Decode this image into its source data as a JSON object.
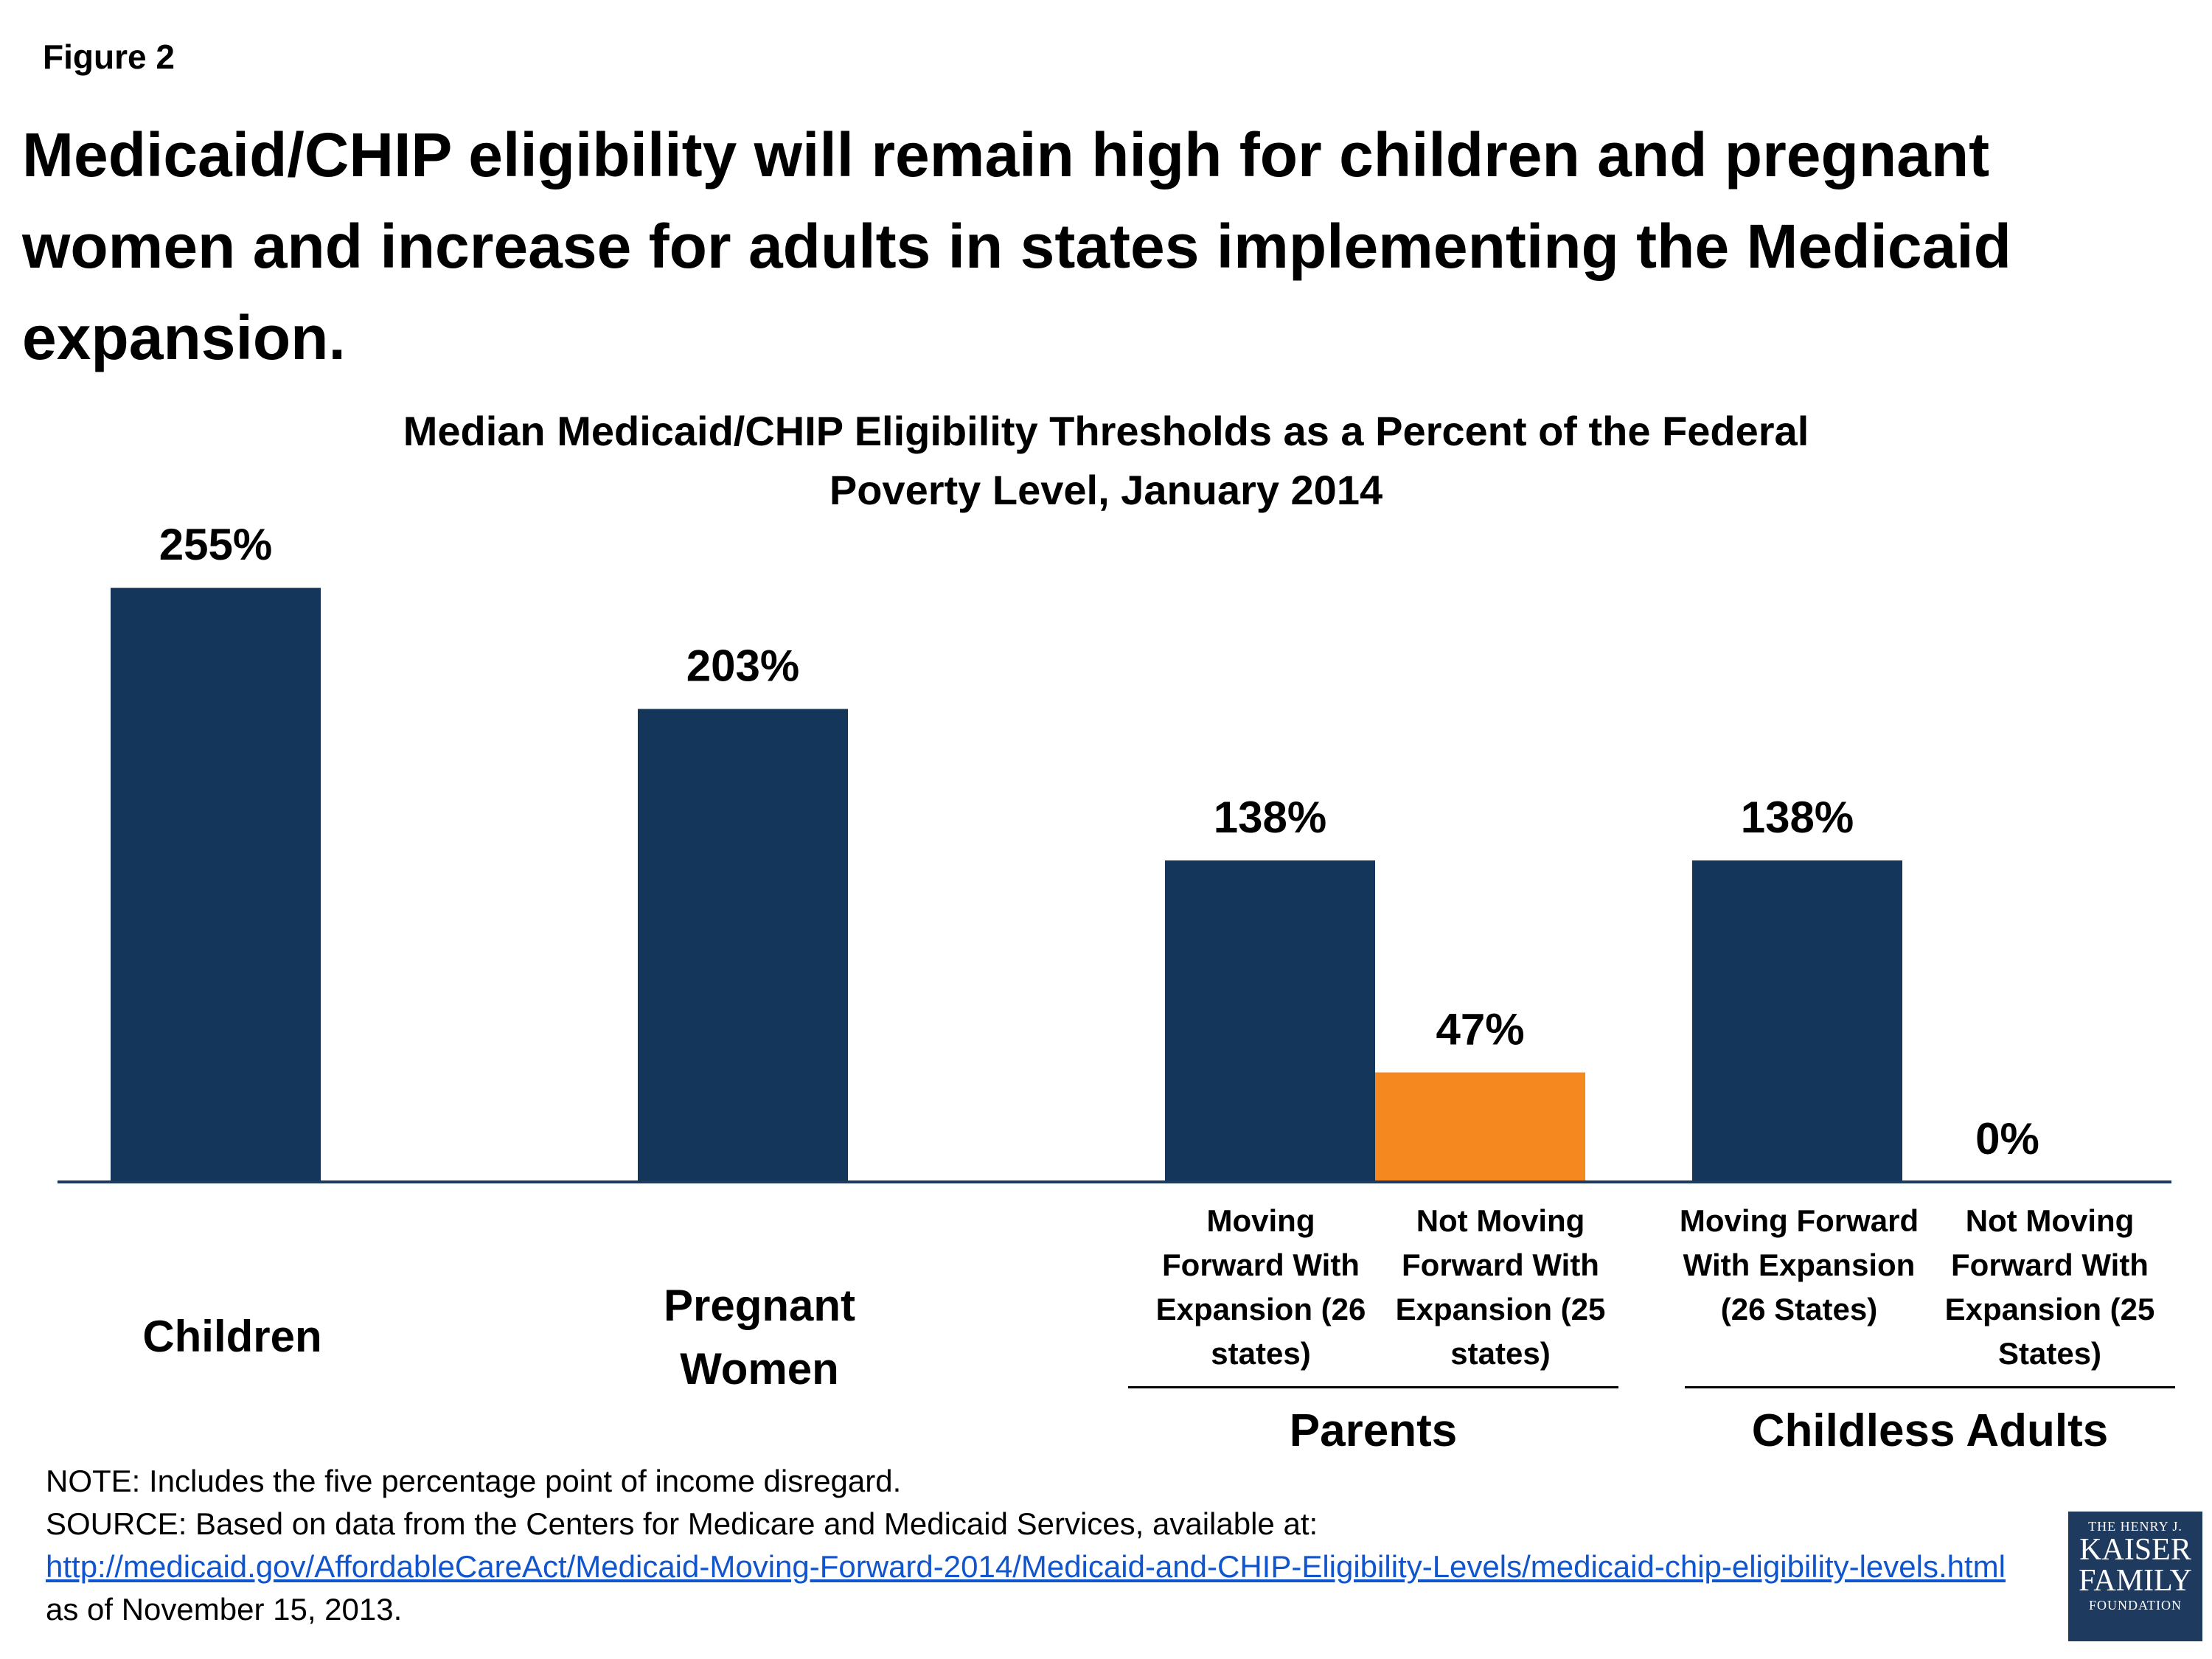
{
  "figure_label": "Figure 2",
  "title": "Medicaid/CHIP eligibility will remain high for children and pregnant women and increase for adults in states implementing the Medicaid expansion.",
  "colors": {
    "navy": "#14365a",
    "orange": "#f5891f"
  },
  "chart_data": {
    "type": "bar",
    "title": "Median Medicaid/CHIP Eligibility Thresholds as a Percent of the Federal Poverty Level, January 2014",
    "ylim": [
      0,
      300
    ],
    "grid": false,
    "bars": [
      {
        "label": "Children",
        "group": "",
        "value": 255,
        "value_label": "255%",
        "color": "navy"
      },
      {
        "label": "Pregnant Women",
        "group": "",
        "value": 203,
        "value_label": "203%",
        "color": "navy"
      },
      {
        "label": "Moving Forward With Expansion (26 states)",
        "group": "Parents",
        "value": 138,
        "value_label": "138%",
        "color": "navy"
      },
      {
        "label": "Not Moving Forward With Expansion (25 states)",
        "group": "Parents",
        "value": 47,
        "value_label": "47%",
        "color": "orange"
      },
      {
        "label": "Moving Forward With Expansion (26 States)",
        "group": "Childless Adults",
        "value": 138,
        "value_label": "138%",
        "color": "navy"
      },
      {
        "label": "Not Moving Forward With Expansion (25 States)",
        "group": "Childless Adults",
        "value": 0,
        "value_label": "0%",
        "color": "orange"
      }
    ],
    "category_labels": {
      "children": "Children",
      "pregnant_women": "Pregnant Women",
      "parents_with": "Moving Forward With Expansion (26 states)",
      "parents_without": "Not Moving Forward With Expansion (25 states)",
      "childless_with": "Moving Forward With Expansion (26 States)",
      "childless_without": "Not Moving Forward With Expansion (25 States)"
    },
    "groups": {
      "parents": "Parents",
      "childless": "Childless Adults"
    }
  },
  "footnote": {
    "note": "NOTE: Includes the five percentage point of income disregard.",
    "source_prefix": "SOURCE: Based on data from the Centers for Medicare and Medicaid Services, available at:",
    "link_text": "http://medicaid.gov/AffordableCareAct/Medicaid-Moving-Forward-2014/Medicaid-and-CHIP-Eligibility-Levels/medicaid-chip-eligibility-levels.html",
    "suffix": "as of November 15, 2013."
  },
  "logo": {
    "line1": "THE HENRY J.",
    "line2": "KAISER",
    "line3": "FAMILY",
    "line4": "FOUNDATION"
  }
}
